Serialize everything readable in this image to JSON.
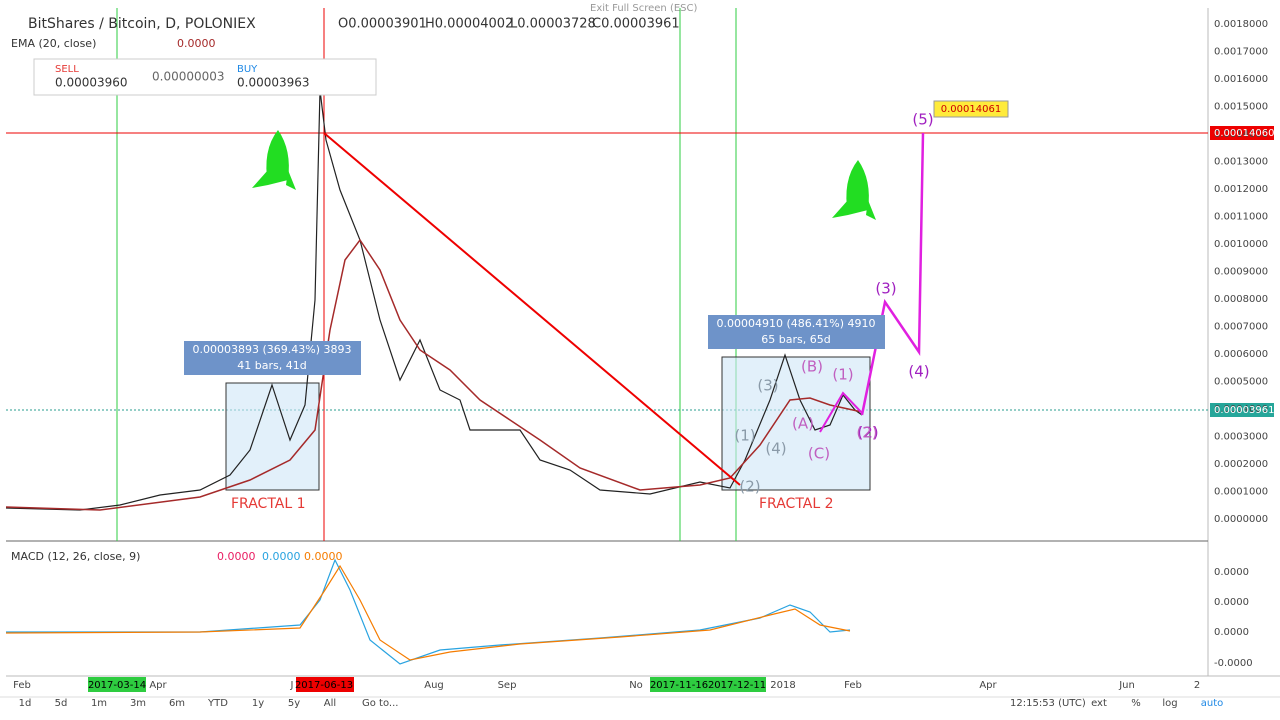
{
  "header": {
    "symbol": "BitShares / Bitcoin, D, POLONIEX",
    "ohlc": [
      "O0.00003901",
      "H0.00004002",
      "L0.00003728",
      "C0.00003961"
    ],
    "exit": "Exit Full Screen (ESC)"
  },
  "indicator": {
    "name": "EMA (20, close)",
    "value": "0.0000"
  },
  "trade": {
    "sell_label": "SELL",
    "sell": "0.00003960",
    "spread": "0.00000003",
    "buy_label": "BUY",
    "buy": "0.00003963"
  },
  "price_axis": [
    "0.0000000",
    "0.0001000",
    "0.0002000",
    "0.0003000",
    "0.0004000",
    "0.0005000",
    "0.0006000",
    "0.0007000",
    "0.0008000",
    "0.0009000",
    "0.0010000",
    "0.0011000",
    "0.0012000",
    "0.0013000",
    "0.0014000",
    "0.0015000",
    "0.0016000",
    "0.0017000",
    "0.0018000"
  ],
  "price_tags": {
    "current": "0.00003961",
    "target": "0.00014060"
  },
  "annotations": {
    "fractal1": "FRACTAL 1",
    "fractal2": "FRACTAL 2",
    "measure1": [
      "0.00003893 (369.43%) 3893",
      "41 bars, 41d"
    ],
    "measure2": [
      "0.00004910 (486.41%) 4910",
      "65 bars, 65d"
    ],
    "target_label": "0.00014061",
    "waves": [
      "(1)",
      "(2)",
      "(3)",
      "(4)",
      "(5)"
    ],
    "sub_waves": [
      "(1)",
      "(2)",
      "(A)",
      "(B)",
      "(C)"
    ],
    "grey_waves": [
      "(1)",
      "(2)",
      "(3)",
      "(4)"
    ]
  },
  "macd": {
    "name": "MACD (12, 26, close, 9)",
    "values": [
      "0.0000",
      "0.0000",
      "0.0000"
    ],
    "axis": [
      "0.0000",
      "0.0000",
      "0.0000",
      "-0.0000"
    ]
  },
  "time_axis": [
    "Feb",
    "Apr",
    "J",
    "Aug",
    "Sep",
    "No",
    "2018",
    "Feb",
    "Apr",
    "Jun",
    "2"
  ],
  "date_markers": [
    "2017-03-14",
    "2017-06-13",
    "2017-11-16",
    "2017-12-11"
  ],
  "toolbar": {
    "ranges": [
      "1d",
      "5d",
      "1m",
      "3m",
      "6m",
      "YTD",
      "1y",
      "5y",
      "All"
    ],
    "goto": "Go to...",
    "clock": "12:15:53 (UTC)",
    "options": [
      "ext",
      "%",
      "log",
      "auto"
    ]
  }
}
